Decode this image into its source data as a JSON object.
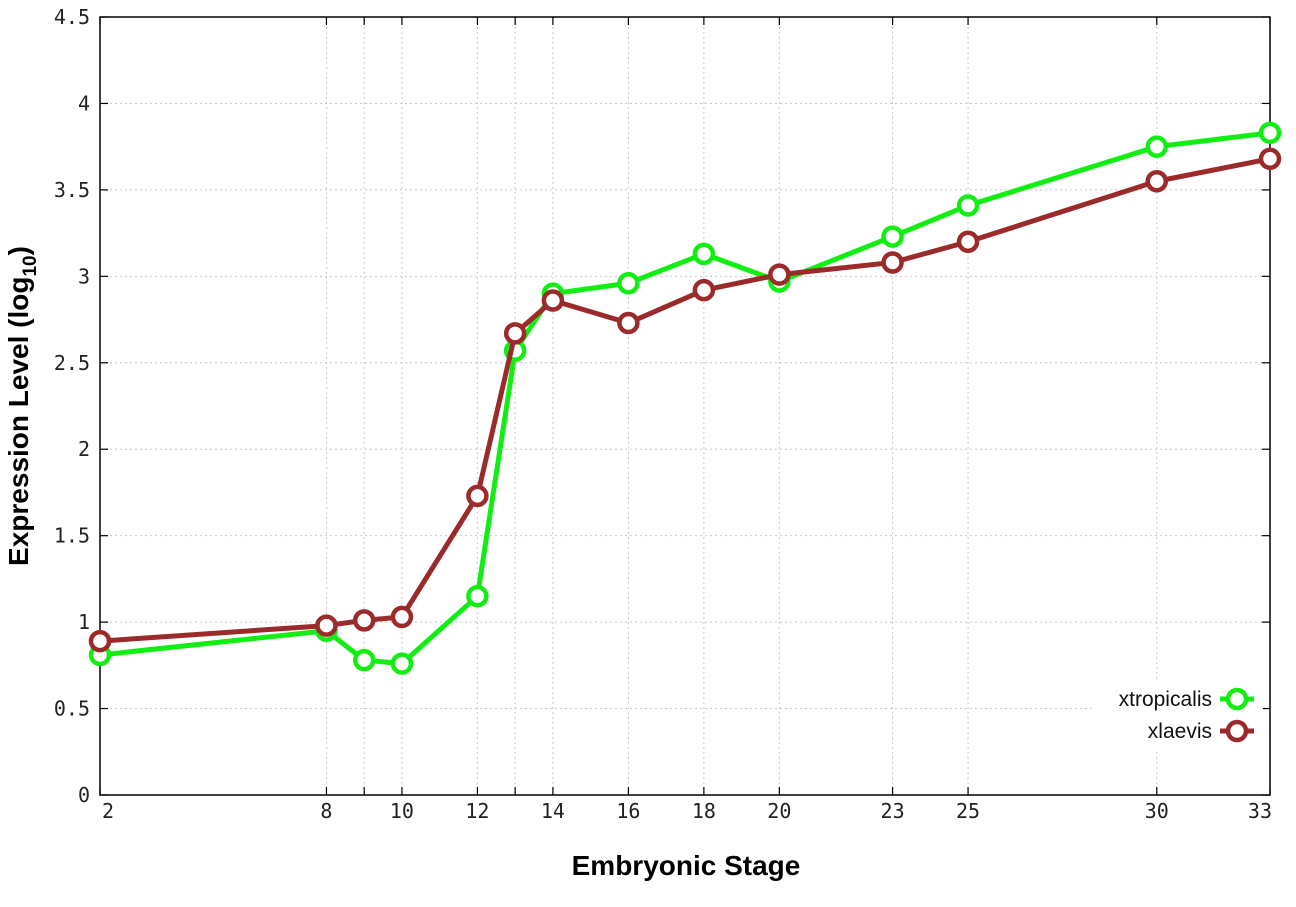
{
  "chart_data": {
    "type": "line",
    "xlabel": "Embryonic Stage",
    "ylabel_main": "Expression Level (log",
    "ylabel_sub": "10",
    "ylabel_close": ")",
    "ylim": [
      0,
      4.5
    ],
    "y_ticks": [
      0,
      0.5,
      1,
      1.5,
      2,
      2.5,
      3,
      3.5,
      4,
      4.5
    ],
    "y_tick_labels": [
      "0",
      "0.5",
      "1",
      "1.5",
      "2",
      "2.5",
      "3",
      "3.5",
      "4",
      "4.5"
    ],
    "x_ticks": [
      2,
      8,
      9,
      10,
      12,
      13,
      14,
      16,
      18,
      20,
      23,
      25,
      30,
      33
    ],
    "x_tick_labels": [
      "2",
      "8",
      "10",
      "12",
      "14",
      "16",
      "18",
      "20",
      "23",
      "25",
      "30",
      "33"
    ],
    "x_labeled_ticks": [
      2,
      8,
      10,
      12,
      14,
      16,
      18,
      20,
      23,
      25,
      30,
      33
    ],
    "x": [
      2,
      8,
      9,
      10,
      12,
      13,
      14,
      16,
      18,
      20,
      23,
      25,
      30,
      33
    ],
    "grid": true,
    "legend_position": "bottom-right",
    "series": [
      {
        "name": "xtropicalis",
        "color": "#11ee11",
        "values": [
          0.81,
          0.95,
          0.78,
          0.76,
          1.15,
          2.57,
          2.9,
          2.96,
          3.13,
          2.97,
          3.23,
          3.41,
          3.75,
          3.83
        ]
      },
      {
        "name": "xlaevis",
        "color": "#9b2a2a",
        "values": [
          0.89,
          0.98,
          1.01,
          1.03,
          1.73,
          2.67,
          2.86,
          2.73,
          2.92,
          3.01,
          3.08,
          3.2,
          3.55,
          3.68
        ]
      }
    ]
  }
}
